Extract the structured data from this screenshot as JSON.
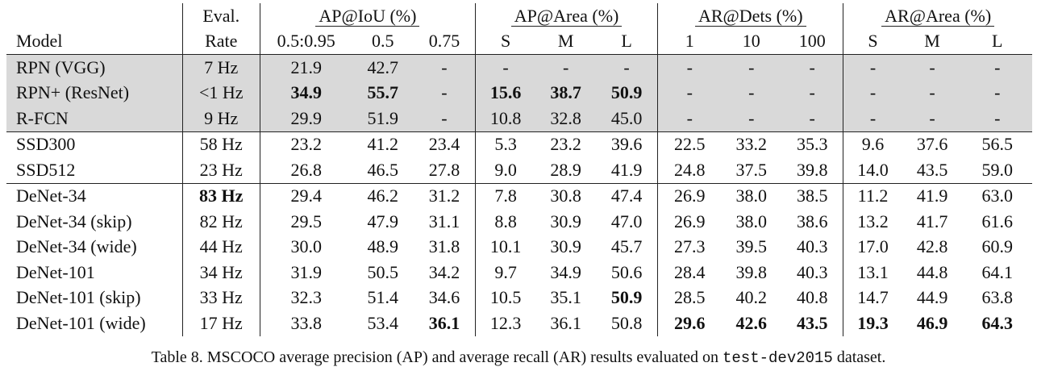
{
  "headers": {
    "row1": {
      "model": "",
      "eval": "Eval.",
      "groups": [
        "AP@IoU (%)",
        "AP@Area (%)",
        "AR@Dets (%)",
        "AR@Area (%)"
      ]
    },
    "row2": [
      "Model",
      "Rate",
      "0.5:0.95",
      "0.5",
      "0.75",
      "S",
      "M",
      "L",
      "1",
      "10",
      "100",
      "S",
      "M",
      "L"
    ]
  },
  "rows": [
    {
      "cells": [
        "RPN (VGG)",
        "7 Hz",
        "21.9",
        "42.7",
        "-",
        "-",
        "-",
        "-",
        "-",
        "-",
        "-",
        "-",
        "-",
        "-"
      ],
      "bold": [],
      "shaded": true
    },
    {
      "cells": [
        "RPN+ (ResNet)",
        "<1 Hz",
        "34.9",
        "55.7",
        "-",
        "15.6",
        "38.7",
        "50.9",
        "-",
        "-",
        "-",
        "-",
        "-",
        "-"
      ],
      "bold": [
        2,
        3,
        5,
        6,
        7
      ],
      "shaded": true
    },
    {
      "cells": [
        "R-FCN",
        "9 Hz",
        "29.9",
        "51.9",
        "-",
        "10.8",
        "32.8",
        "45.0",
        "-",
        "-",
        "-",
        "-",
        "-",
        "-"
      ],
      "bold": [],
      "shaded": true
    },
    {
      "cells": [
        "SSD300",
        "58 Hz",
        "23.2",
        "41.2",
        "23.4",
        "5.3",
        "23.2",
        "39.6",
        "22.5",
        "33.2",
        "35.3",
        "9.6",
        "37.6",
        "56.5"
      ],
      "bold": [],
      "shaded": false
    },
    {
      "cells": [
        "SSD512",
        "23 Hz",
        "26.8",
        "46.5",
        "27.8",
        "9.0",
        "28.9",
        "41.9",
        "24.8",
        "37.5",
        "39.8",
        "14.0",
        "43.5",
        "59.0"
      ],
      "bold": [],
      "shaded": false
    },
    {
      "cells": [
        "DeNet-34",
        "83 Hz",
        "29.4",
        "46.2",
        "31.2",
        "7.8",
        "30.8",
        "47.4",
        "26.9",
        "38.0",
        "38.5",
        "11.2",
        "41.9",
        "63.0"
      ],
      "bold": [
        1
      ],
      "shaded": false,
      "sep": true
    },
    {
      "cells": [
        "DeNet-34 (skip)",
        "82 Hz",
        "29.5",
        "47.9",
        "31.1",
        "8.8",
        "30.9",
        "47.0",
        "26.9",
        "38.0",
        "38.6",
        "13.2",
        "41.7",
        "61.6"
      ],
      "bold": [],
      "shaded": false
    },
    {
      "cells": [
        "DeNet-34 (wide)",
        "44 Hz",
        "30.0",
        "48.9",
        "31.8",
        "10.1",
        "30.9",
        "45.7",
        "27.3",
        "39.5",
        "40.3",
        "17.0",
        "42.8",
        "60.9"
      ],
      "bold": [],
      "shaded": false
    },
    {
      "cells": [
        "DeNet-101",
        "34 Hz",
        "31.9",
        "50.5",
        "34.2",
        "9.7",
        "34.9",
        "50.6",
        "28.4",
        "39.8",
        "40.3",
        "13.1",
        "44.8",
        "64.1"
      ],
      "bold": [],
      "shaded": false
    },
    {
      "cells": [
        "DeNet-101 (skip)",
        "33 Hz",
        "32.3",
        "51.4",
        "34.6",
        "10.5",
        "35.1",
        "50.9",
        "28.5",
        "40.2",
        "40.8",
        "14.7",
        "44.9",
        "63.8"
      ],
      "bold": [
        7
      ],
      "shaded": false
    },
    {
      "cells": [
        "DeNet-101 (wide)",
        "17 Hz",
        "33.8",
        "53.4",
        "36.1",
        "12.3",
        "36.1",
        "50.8",
        "29.6",
        "42.6",
        "43.5",
        "19.3",
        "46.9",
        "64.3"
      ],
      "bold": [
        4,
        8,
        9,
        10,
        11,
        12,
        13
      ],
      "shaded": false
    }
  ],
  "caption": {
    "prefix": "Table 8. MSCOCO average precision (AP) and average recall (AR) results evaluated on ",
    "code": "test-dev2015",
    "suffix": " dataset."
  }
}
